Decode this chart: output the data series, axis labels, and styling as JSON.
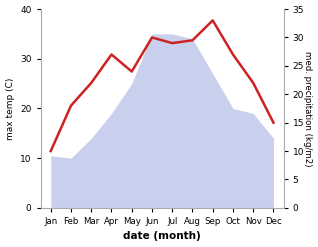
{
  "months": [
    "Jan",
    "Feb",
    "Mar",
    "Apr",
    "May",
    "Jun",
    "Jul",
    "Aug",
    "Sep",
    "Oct",
    "Nov",
    "Dec"
  ],
  "month_indices": [
    0,
    1,
    2,
    3,
    4,
    5,
    6,
    7,
    8,
    9,
    10,
    11
  ],
  "max_temp": [
    10.5,
    10.0,
    14.0,
    19.0,
    25.0,
    35.0,
    35.0,
    34.0,
    27.0,
    20.0,
    19.0,
    14.0
  ],
  "precipitation": [
    10.0,
    18.0,
    22.0,
    27.0,
    24.0,
    30.0,
    29.0,
    29.5,
    33.0,
    27.0,
    22.0,
    15.0
  ],
  "temp_fill_color": "#c8d0ee",
  "precip_color": "#cc2222",
  "ylim_temp": [
    0,
    40
  ],
  "ylim_precip": [
    0,
    35
  ],
  "ylabel_left": "max temp (C)",
  "ylabel_right": "med. precipitation (kg/m2)",
  "xlabel": "date (month)",
  "background_color": "#ffffff"
}
